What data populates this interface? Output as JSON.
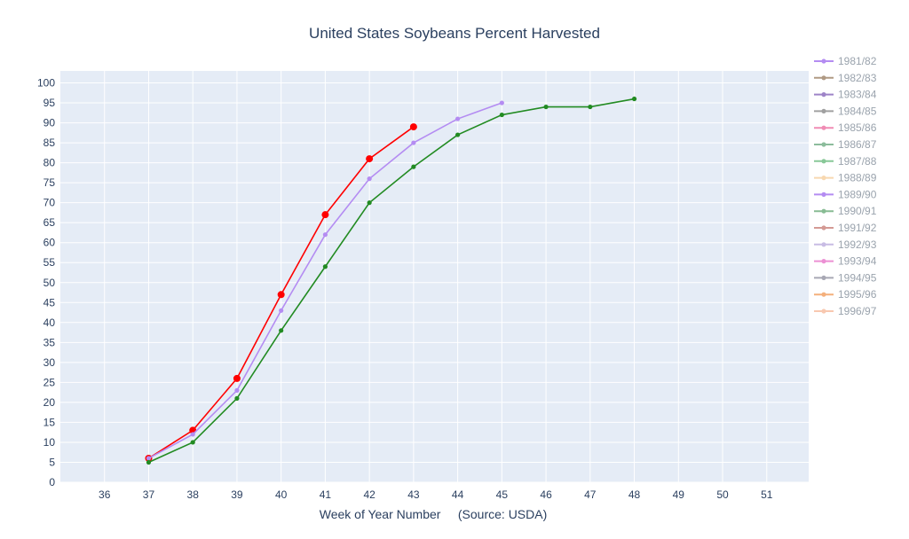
{
  "chart_data": {
    "type": "line",
    "title": "United States Soybeans Percent Harvested",
    "xlabel": "Week of Year Number     (Source: USDA)",
    "ylabel": "",
    "xlim": [
      35.0,
      51.95
    ],
    "ylim": [
      0,
      103
    ],
    "x_ticks": [
      36,
      37,
      38,
      39,
      40,
      41,
      42,
      43,
      44,
      45,
      46,
      47,
      48,
      49,
      50,
      51
    ],
    "y_ticks": [
      0,
      5,
      10,
      15,
      20,
      25,
      30,
      35,
      40,
      45,
      50,
      55,
      60,
      65,
      70,
      75,
      80,
      85,
      90,
      95,
      100
    ],
    "grid": true,
    "legend_position": "right",
    "plot_background": "#e5ecf6",
    "series": [
      {
        "color": "#ff0000",
        "x": [
          37,
          38,
          39,
          40,
          41,
          42,
          43
        ],
        "y": [
          6,
          13,
          26,
          47,
          67,
          81,
          89
        ]
      },
      {
        "color": "#b48cf2",
        "x": [
          37,
          38,
          39,
          40,
          41,
          42,
          43,
          44,
          45
        ],
        "y": [
          6,
          12,
          23,
          43,
          62,
          76,
          85,
          91,
          95
        ]
      },
      {
        "color": "#228b22",
        "x": [
          37,
          38,
          39,
          40,
          41,
          42,
          43,
          44,
          45,
          46,
          47,
          48
        ],
        "y": [
          5,
          10,
          21,
          38,
          54,
          70,
          79,
          87,
          92,
          94,
          94,
          96
        ]
      }
    ],
    "legend": [
      {
        "name": "1981/82",
        "color": "#b48cf2"
      },
      {
        "name": "1982/83",
        "color": "#b09a84"
      },
      {
        "name": "1983/84",
        "color": "#9e84c8"
      },
      {
        "name": "1984/85",
        "color": "#a0a0a0"
      },
      {
        "name": "1985/86",
        "color": "#f08cb4"
      },
      {
        "name": "1986/87",
        "color": "#8cbc9c"
      },
      {
        "name": "1987/88",
        "color": "#88c898"
      },
      {
        "name": "1988/89",
        "color": "#f8d8b0"
      },
      {
        "name": "1989/90",
        "color": "#b48cf2"
      },
      {
        "name": "1990/91",
        "color": "#88bc94"
      },
      {
        "name": "1991/92",
        "color": "#d49a94"
      },
      {
        "name": "1992/93",
        "color": "#c8bce4"
      },
      {
        "name": "1993/94",
        "color": "#ec90d4"
      },
      {
        "name": "1994/95",
        "color": "#a8a8b4"
      },
      {
        "name": "1995/96",
        "color": "#f4b07c"
      },
      {
        "name": "1996/97",
        "color": "#f8c8b0"
      }
    ]
  }
}
